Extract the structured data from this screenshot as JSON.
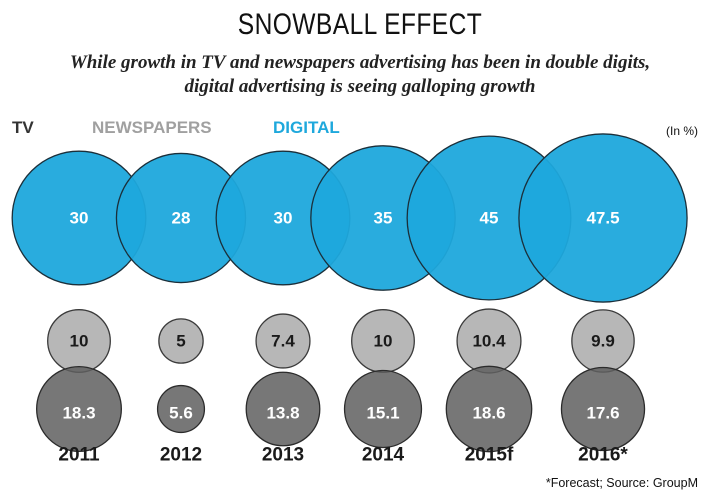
{
  "title": "SNOWBALL EFFECT",
  "subtitle_line1": "While growth in TV and newspapers advertising has been in double digits,",
  "subtitle_line2": "digital advertising is seeing galloping growth",
  "unit_note": "(In %)",
  "footnote": "*Forecast; Source: GroupM",
  "colors": {
    "tv": "#5f5f5f",
    "newspapers": "#a7a7a7",
    "digital": "#1ea8dc",
    "tv_label": "#333333",
    "newspapers_label": "#a0a0a0",
    "digital_label": "#1ea8dc"
  },
  "chart_data": {
    "type": "bubble",
    "categories": [
      "2011",
      "2012",
      "2013",
      "2014",
      "2015f",
      "2016*"
    ],
    "series": [
      {
        "name": "DIGITAL",
        "values": [
          30,
          28,
          30,
          35,
          45,
          47.5
        ],
        "labels": [
          "30",
          "28",
          "30",
          "35",
          "45",
          "47.5"
        ]
      },
      {
        "name": "NEWSPAPERS",
        "values": [
          10,
          5,
          7.4,
          10,
          10.4,
          9.9
        ],
        "labels": [
          "10",
          "5",
          "7.4",
          "10",
          "10.4",
          "9.9"
        ]
      },
      {
        "name": "TV",
        "values": [
          18.3,
          5.6,
          13.8,
          15.1,
          18.6,
          17.6
        ],
        "labels": [
          "18.3",
          "5.6",
          "13.8",
          "15.1",
          "18.6",
          "17.6"
        ]
      }
    ],
    "legend": [
      "TV",
      "NEWSPAPERS",
      "DIGITAL"
    ],
    "legend_position": "top-left",
    "unit": "(In %)"
  }
}
